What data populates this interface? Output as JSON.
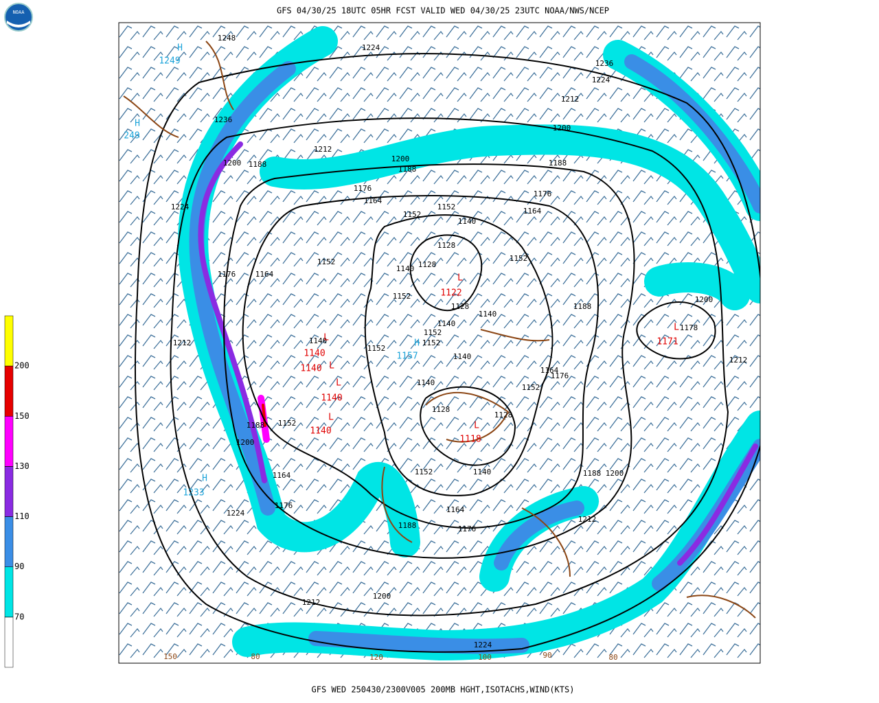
{
  "header": {
    "title": "GFS 04/30/25 18UTC 05HR FCST VALID WED 04/30/25 23UTC NOAA/NWS/NCEP",
    "logo": "NOAA"
  },
  "footer": {
    "caption": "GFS WED 250430/2300V005 200MB HGHT,ISOTACHS,WIND(KTS)"
  },
  "colorbar": {
    "ticks": [
      70,
      90,
      110,
      130,
      150,
      200
    ],
    "colors": [
      "#ffffff",
      "#00e5e5",
      "#3a8ee6",
      "#8a2be2",
      "#ff00ff",
      "#e60000",
      "#ffff00"
    ]
  },
  "map": {
    "height_labels": [
      "1248",
      "1224",
      "1236",
      "1224",
      "1212",
      "1200",
      "1236",
      "1200",
      "1188",
      "1212",
      "1200",
      "1188",
      "1176",
      "1164",
      "1188",
      "1176",
      "1164",
      "1152",
      "1152",
      "1140",
      "1128",
      "1128",
      "1140",
      "1152",
      "1152",
      "1176",
      "1164",
      "1224",
      "1152",
      "1128",
      "1140",
      "1188",
      "1200",
      "1178",
      "1212",
      "1140",
      "1152",
      "1140",
      "1152",
      "1152",
      "1140",
      "1164",
      "1176",
      "1212",
      "1140",
      "1152",
      "1128",
      "1128",
      "1188",
      "1152",
      "1200",
      "1164",
      "1152",
      "1140",
      "1188",
      "1200",
      "1224",
      "1176",
      "1164",
      "1176",
      "1188",
      "1212",
      "1200",
      "1212",
      "1224"
    ],
    "highs": [
      {
        "symbol": "H",
        "value": "1249"
      },
      {
        "symbol": "H",
        "value": "249"
      },
      {
        "symbol": "H",
        "value": "1233"
      },
      {
        "symbol": "H",
        "value": "1157"
      }
    ],
    "lows": [
      {
        "symbol": "L",
        "value": "1122"
      },
      {
        "symbol": "L",
        "value": "1171"
      },
      {
        "symbol": "L",
        "value": "1118"
      },
      {
        "symbol": "L",
        "value": "1140"
      },
      {
        "symbol": "L",
        "value": "1140"
      },
      {
        "symbol": "L",
        "value": "1140"
      },
      {
        "symbol": "L",
        "value": "1140"
      }
    ],
    "isotach_labels": [
      "150",
      "80",
      "120",
      "100",
      "90",
      "80"
    ]
  }
}
